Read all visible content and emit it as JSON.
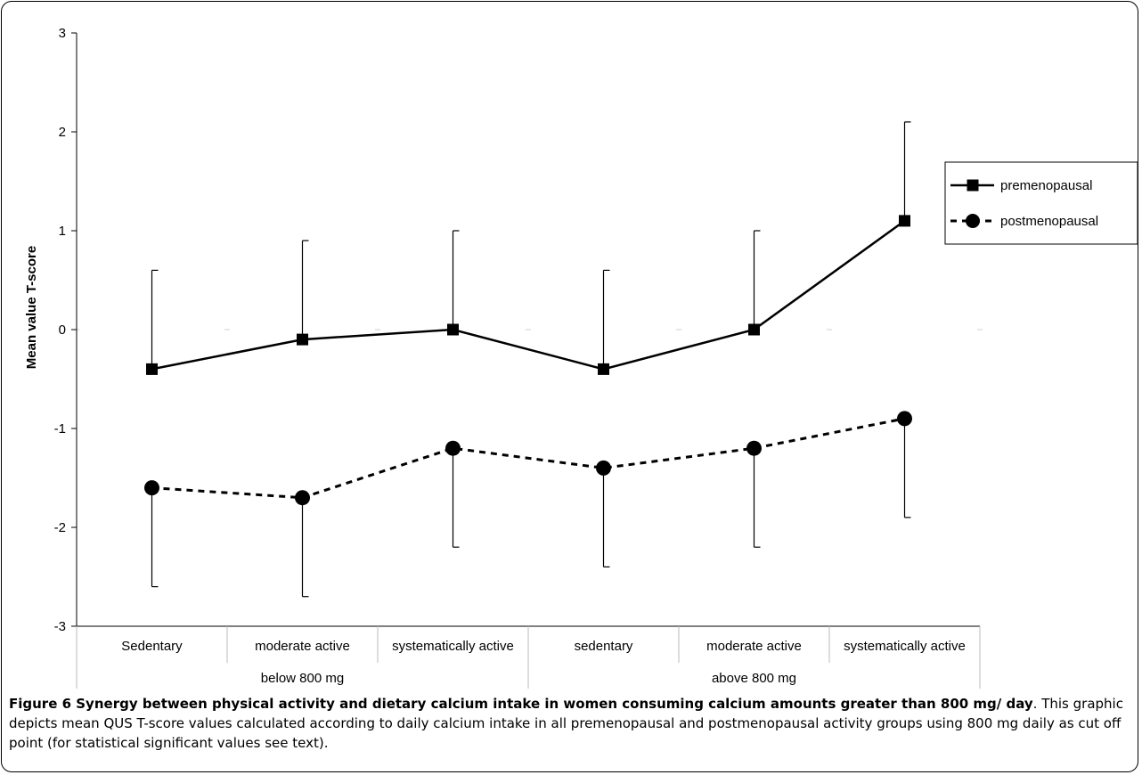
{
  "chart_data": {
    "type": "line",
    "ylabel": "Mean value T-score",
    "xlabel": "",
    "ylim": [
      -3,
      3
    ],
    "yticks": [
      -3,
      -2,
      -1,
      0,
      1,
      2,
      3
    ],
    "categories": [
      "Sedentary",
      "moderate active",
      "systematically active",
      "sedentary",
      "moderate active",
      "systematically active"
    ],
    "groups": [
      {
        "label": "below 800 mg",
        "span": [
          0,
          2
        ]
      },
      {
        "label": "above 800 mg",
        "span": [
          3,
          5
        ]
      }
    ],
    "legend_position": "right",
    "series": [
      {
        "name": "premenopausal",
        "marker": "square",
        "line": "solid",
        "values": [
          -0.4,
          -0.1,
          0.0,
          -0.4,
          0.0,
          1.1
        ],
        "error_upper": [
          0.6,
          0.9,
          1.0,
          0.6,
          1.0,
          2.1
        ]
      },
      {
        "name": "postmenopausal",
        "marker": "circle",
        "line": "dashed",
        "values": [
          -1.6,
          -1.7,
          -1.2,
          -1.4,
          -1.2,
          -0.9
        ],
        "error_lower": [
          -2.6,
          -2.7,
          -2.2,
          -2.4,
          -2.2,
          -1.9
        ]
      }
    ]
  },
  "caption": {
    "title": "Figure 6 Synergy between physical activity and dietary calcium intake in women consuming calcium amounts greater than 800 mg/ day",
    "text": ". This graphic depicts mean QUS T-score values calculated according to daily calcium intake in all premenopausal and postmenopausal activity groups using 800 mg daily as cut off point (for statistical significant values see text)."
  }
}
